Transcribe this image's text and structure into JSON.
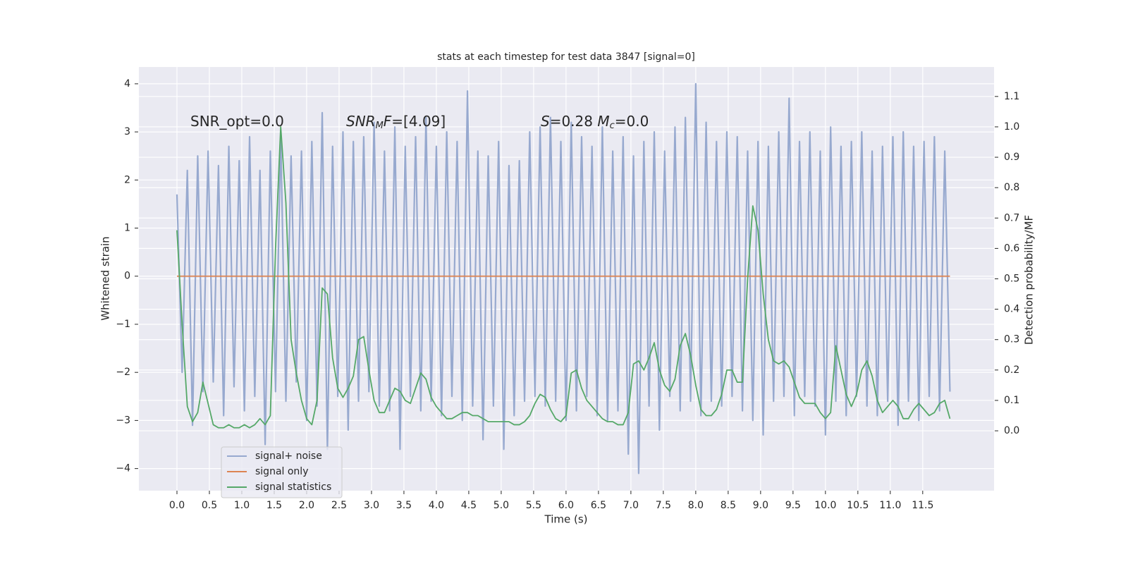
{
  "chart_data": {
    "type": "line",
    "title": "stats at each timestep for test data 3847 [signal=0]",
    "xlabel": "Time (s)",
    "ylabel": "Whitened strain",
    "y2label": "Detection probability/MF",
    "annotations": [
      [
        "SNR_opt=0.0"
      ],
      [
        "SNR",
        "M",
        "F",
        "=[4.09]"
      ],
      [
        "S",
        "=0.28   ",
        "M",
        "c",
        "=0.0"
      ]
    ],
    "grid": true,
    "legend": "lower left",
    "xlim": [
      -0.587,
      12.6
    ],
    "ylim": [
      -4.46,
      4.35
    ],
    "y2lim": [
      -0.197,
      1.197
    ],
    "xticks": [
      {
        "value": 0,
        "label": "0.0"
      },
      0.5,
      {
        "value": 1,
        "label": "1.0"
      },
      1.5,
      {
        "value": 2,
        "label": "2.0"
      },
      2.5,
      {
        "value": 3,
        "label": "3.0"
      },
      3.5,
      {
        "value": 4,
        "label": "4.0"
      },
      4.5,
      {
        "value": 5,
        "label": "5.0"
      },
      5.5,
      {
        "value": 6,
        "label": "6.0"
      },
      6.5,
      {
        "value": 7,
        "label": "7.0"
      },
      7.5,
      {
        "value": 8,
        "label": "8.0"
      },
      8.5,
      {
        "value": 9,
        "label": "9.0"
      },
      9.5,
      {
        "value": 10,
        "label": "10.0"
      },
      10.5,
      {
        "value": 11,
        "label": "11.0"
      },
      11.5
    ],
    "yticks": [
      {
        "value": -4,
        "label": "−4"
      },
      {
        "value": -3,
        "label": "−3"
      },
      {
        "value": -2,
        "label": "−2"
      },
      {
        "value": -1,
        "label": "−1"
      },
      0,
      1,
      2,
      3,
      4
    ],
    "y2ticks": [
      {
        "value": 0,
        "label": "0.0"
      },
      0.1,
      0.2,
      0.3,
      0.4,
      0.5,
      0.6,
      0.7,
      0.8,
      0.9,
      {
        "value": 1,
        "label": "1.0"
      },
      1.1
    ],
    "x": [
      0,
      0.08,
      0.16,
      0.24,
      0.32,
      0.4,
      0.48,
      0.56,
      0.64,
      0.72,
      0.8,
      0.88,
      0.96,
      1.04,
      1.12,
      1.2,
      1.28,
      1.36,
      1.44,
      1.52,
      1.6,
      1.68,
      1.76,
      1.84,
      1.92,
      2.0,
      2.08,
      2.16,
      2.24,
      2.32,
      2.4,
      2.48,
      2.56,
      2.64,
      2.72,
      2.8,
      2.88,
      2.96,
      3.04,
      3.12,
      3.2,
      3.28,
      3.36,
      3.44,
      3.52,
      3.6,
      3.68,
      3.76,
      3.84,
      3.92,
      4.0,
      4.08,
      4.16,
      4.24,
      4.32,
      4.4,
      4.48,
      4.56,
      4.64,
      4.72,
      4.8,
      4.88,
      4.96,
      5.04,
      5.12,
      5.2,
      5.28,
      5.36,
      5.44,
      5.52,
      5.6,
      5.68,
      5.76,
      5.84,
      5.92,
      6.0,
      6.08,
      6.16,
      6.24,
      6.32,
      6.4,
      6.48,
      6.56,
      6.64,
      6.72,
      6.8,
      6.88,
      6.96,
      7.04,
      7.12,
      7.2,
      7.28,
      7.36,
      7.44,
      7.52,
      7.6,
      7.68,
      7.76,
      7.84,
      7.92,
      8.0,
      8.08,
      8.16,
      8.24,
      8.32,
      8.4,
      8.48,
      8.56,
      8.64,
      8.72,
      8.8,
      8.88,
      8.96,
      9.04,
      9.12,
      9.2,
      9.28,
      9.36,
      9.44,
      9.52,
      9.6,
      9.68,
      9.76,
      9.84,
      9.92,
      10.0,
      10.08,
      10.16,
      10.24,
      10.32,
      10.4,
      10.48,
      10.56,
      10.64,
      10.72,
      10.8,
      10.88,
      10.96,
      11.04,
      11.12,
      11.2,
      11.28,
      11.36,
      11.44,
      11.52,
      11.6,
      11.68,
      11.76,
      11.84,
      11.92
    ],
    "series": [
      {
        "name": "signal+ noise",
        "color": "#97a9cf",
        "values": [
          1.7,
          -2.0,
          2.2,
          -3.1,
          2.5,
          -2.4,
          2.6,
          -2.2,
          2.3,
          -2.9,
          2.7,
          -2.3,
          2.4,
          -2.8,
          2.9,
          -2.5,
          2.2,
          -3.5,
          2.6,
          -2.4,
          2.9,
          -2.6,
          2.5,
          -2.2,
          2.6,
          -3.0,
          2.8,
          -2.7,
          3.4,
          -3.6,
          2.7,
          -2.5,
          3.0,
          -3.2,
          2.8,
          -2.6,
          2.9,
          -2.4,
          3.2,
          -2.7,
          2.6,
          -2.8,
          3.1,
          -3.6,
          2.7,
          -2.5,
          2.9,
          -2.8,
          3.3,
          -2.6,
          2.7,
          -2.9,
          3.0,
          -2.5,
          2.8,
          -3.0,
          3.85,
          -2.7,
          2.6,
          -3.4,
          2.5,
          -2.7,
          2.8,
          -3.6,
          2.3,
          -2.9,
          2.4,
          -2.6,
          3.0,
          -2.5,
          3.1,
          -2.7,
          3.3,
          -2.6,
          2.8,
          -3.0,
          3.2,
          -2.8,
          2.9,
          -2.5,
          2.7,
          -2.9,
          3.1,
          -3.0,
          2.6,
          -2.8,
          2.9,
          -3.7,
          2.5,
          -4.1,
          2.8,
          -2.7,
          3.0,
          -3.2,
          2.6,
          -2.5,
          3.1,
          -2.8,
          3.3,
          -2.6,
          4.0,
          -2.9,
          3.2,
          -2.6,
          2.8,
          -2.7,
          3.0,
          -2.5,
          2.9,
          -2.8,
          2.6,
          -3.0,
          2.8,
          -3.3,
          2.7,
          -2.6,
          3.0,
          -2.5,
          3.7,
          -2.9,
          2.8,
          -2.5,
          3.0,
          -2.7,
          2.6,
          -3.3,
          3.1,
          -2.6,
          2.7,
          -2.9,
          2.8,
          -2.5,
          3.0,
          -2.7,
          2.6,
          -2.9,
          2.7,
          -2.6,
          2.9,
          -3.1,
          3.0,
          -2.6,
          2.7,
          -3.0,
          2.8,
          -2.5,
          2.9,
          -2.8,
          2.6,
          -2.4
        ]
      },
      {
        "name": "signal only",
        "color": "#dd8452",
        "values": [
          0,
          0,
          0,
          0,
          0,
          0,
          0,
          0,
          0,
          0,
          0,
          0,
          0,
          0,
          0,
          0,
          0,
          0,
          0,
          0,
          0,
          0,
          0,
          0,
          0,
          0,
          0,
          0,
          0,
          0,
          0,
          0,
          0,
          0,
          0,
          0,
          0,
          0,
          0,
          0,
          0,
          0,
          0,
          0,
          0,
          0,
          0,
          0,
          0,
          0,
          0,
          0,
          0,
          0,
          0,
          0,
          0,
          0,
          0,
          0,
          0,
          0,
          0,
          0,
          0,
          0,
          0,
          0,
          0,
          0,
          0,
          0,
          0,
          0,
          0,
          0,
          0,
          0,
          0,
          0,
          0,
          0,
          0,
          0,
          0,
          0,
          0,
          0,
          0,
          0,
          0,
          0,
          0,
          0,
          0,
          0,
          0,
          0,
          0,
          0,
          0,
          0,
          0,
          0,
          0,
          0,
          0,
          0,
          0,
          0,
          0,
          0,
          0,
          0,
          0,
          0,
          0,
          0,
          0,
          0,
          0,
          0,
          0,
          0,
          0,
          0,
          0,
          0,
          0,
          0,
          0,
          0,
          0,
          0,
          0,
          0,
          0,
          0,
          0,
          0,
          0,
          0,
          0,
          0,
          0,
          0,
          0,
          0,
          0,
          0
        ]
      },
      {
        "name": "signal statistics",
        "color": "#55a868",
        "axis": "y2",
        "values": [
          0.66,
          0.35,
          0.08,
          0.03,
          0.06,
          0.16,
          0.09,
          0.02,
          0.01,
          0.01,
          0.02,
          0.01,
          0.01,
          0.02,
          0.01,
          0.02,
          0.04,
          0.02,
          0.05,
          0.6,
          1.0,
          0.75,
          0.3,
          0.19,
          0.1,
          0.04,
          0.02,
          0.1,
          0.47,
          0.45,
          0.24,
          0.14,
          0.11,
          0.14,
          0.18,
          0.3,
          0.31,
          0.2,
          0.1,
          0.06,
          0.06,
          0.1,
          0.14,
          0.13,
          0.1,
          0.09,
          0.14,
          0.19,
          0.17,
          0.11,
          0.08,
          0.06,
          0.04,
          0.04,
          0.05,
          0.06,
          0.06,
          0.05,
          0.05,
          0.04,
          0.03,
          0.03,
          0.03,
          0.03,
          0.03,
          0.02,
          0.02,
          0.03,
          0.05,
          0.09,
          0.12,
          0.11,
          0.07,
          0.04,
          0.03,
          0.05,
          0.19,
          0.2,
          0.14,
          0.1,
          0.08,
          0.06,
          0.04,
          0.03,
          0.03,
          0.02,
          0.02,
          0.06,
          0.22,
          0.23,
          0.2,
          0.24,
          0.29,
          0.2,
          0.15,
          0.13,
          0.17,
          0.28,
          0.32,
          0.25,
          0.15,
          0.07,
          0.05,
          0.05,
          0.07,
          0.12,
          0.2,
          0.2,
          0.16,
          0.16,
          0.5,
          0.74,
          0.66,
          0.45,
          0.3,
          0.23,
          0.22,
          0.23,
          0.21,
          0.16,
          0.11,
          0.09,
          0.09,
          0.09,
          0.06,
          0.04,
          0.06,
          0.28,
          0.2,
          0.12,
          0.08,
          0.12,
          0.2,
          0.23,
          0.18,
          0.1,
          0.06,
          0.08,
          0.1,
          0.08,
          0.04,
          0.04,
          0.07,
          0.09,
          0.07,
          0.05,
          0.06,
          0.09,
          0.1,
          0.04
        ]
      }
    ]
  }
}
